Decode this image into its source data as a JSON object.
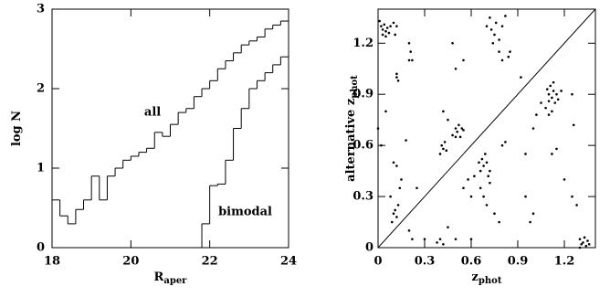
{
  "chart_data": [
    {
      "type": "histogram",
      "x_label": "R",
      "x_label_sub": "aper",
      "y_label": "log N",
      "bins": [
        18.0,
        18.2,
        18.4,
        18.6,
        18.8,
        19.0,
        19.2,
        19.4,
        19.6,
        19.8,
        20.0,
        20.2,
        20.4,
        20.6,
        20.8,
        21.0,
        21.2,
        21.4,
        21.6,
        21.8,
        22.0,
        22.2,
        22.4,
        22.6,
        22.8,
        23.0,
        23.2,
        23.4,
        23.6,
        23.8,
        24.0
      ],
      "series": [
        {
          "name": "all",
          "color": "#000000",
          "values": [
            0.6,
            0.4,
            0.3,
            0.48,
            0.6,
            0.9,
            0.6,
            0.9,
            1.0,
            1.1,
            1.15,
            1.2,
            1.25,
            1.45,
            1.4,
            1.55,
            1.7,
            1.75,
            1.9,
            2.0,
            2.1,
            2.25,
            2.35,
            2.45,
            2.55,
            2.6,
            2.65,
            2.75,
            2.8,
            2.85
          ]
        },
        {
          "name": "bimodal",
          "color": "#000000",
          "values": [
            null,
            null,
            null,
            null,
            null,
            null,
            null,
            null,
            null,
            null,
            null,
            null,
            null,
            null,
            null,
            null,
            null,
            null,
            null,
            0.3,
            0.78,
            0.8,
            1.1,
            1.5,
            1.75,
            2.0,
            2.1,
            2.2,
            2.3,
            2.4
          ]
        }
      ],
      "xlim": [
        18,
        24
      ],
      "xticks": [
        18,
        20,
        22,
        24
      ],
      "ylim": [
        0,
        3
      ],
      "yticks": [
        0,
        1,
        2,
        3
      ]
    },
    {
      "type": "scatter",
      "x_label": "z",
      "x_label_sub": "phot",
      "y_label": "alternative z",
      "y_label_sub": "phot",
      "color": "#000000",
      "x": [
        0.02,
        0.03,
        0.04,
        0.05,
        0.06,
        0.07,
        0.03,
        0.08,
        0.01,
        0.05,
        0.1,
        0.12,
        0.11,
        0.12,
        0.13,
        0.12,
        0.2,
        0.21,
        0.22,
        0.2,
        0.05,
        0.0,
        0.02,
        0.1,
        0.12,
        0.08,
        0.1,
        0.11,
        0.12,
        0.09,
        0.13,
        0.14,
        0.15,
        0.2,
        0.22,
        0.18,
        0.3,
        0.25,
        0.4,
        0.41,
        0.42,
        0.43,
        0.44,
        0.42,
        0.45,
        0.5,
        0.51,
        0.52,
        0.53,
        0.54,
        0.55,
        0.5,
        0.48,
        0.48,
        0.5,
        0.55,
        0.7,
        0.72,
        0.73,
        0.75,
        0.76,
        0.78,
        0.8,
        0.74,
        0.82,
        0.8,
        0.78,
        0.85,
        0.84,
        0.65,
        0.66,
        0.67,
        0.68,
        0.69,
        0.7,
        0.71,
        0.72,
        0.66,
        0.68,
        0.7,
        0.72,
        0.55,
        0.58,
        0.6,
        0.62,
        0.75,
        0.78,
        0.6,
        0.8,
        0.82,
        0.5,
        0.45,
        0.4,
        0.38,
        0.42,
        1.1,
        1.12,
        1.13,
        1.14,
        1.1,
        1.11,
        1.15,
        1.08,
        1.12,
        1.16,
        1.09,
        1.13,
        1.05,
        1.18,
        1.1,
        1.02,
        1.0,
        1.15,
        1.12,
        1.25,
        1.26,
        1.2,
        1.0,
        0.95,
        0.98,
        1.3,
        1.32,
        1.31,
        1.33,
        1.34,
        1.35,
        1.3,
        1.36,
        1.25,
        1.28,
        0.95,
        0.92
      ],
      "values": [
        1.3,
        1.28,
        1.31,
        1.27,
        1.29,
        1.26,
        1.25,
        1.3,
        1.33,
        1.24,
        1.32,
        1.3,
        1.25,
        1.02,
        0.98,
        1.0,
        1.2,
        1.15,
        1.1,
        1.1,
        0.8,
        0.7,
        0.6,
        0.5,
        0.48,
        0.3,
        0.2,
        0.22,
        0.18,
        0.15,
        0.25,
        0.35,
        0.4,
        0.1,
        0.05,
        0.63,
        0.05,
        0.35,
        0.55,
        0.6,
        0.58,
        0.62,
        0.57,
        0.8,
        0.75,
        0.7,
        0.68,
        0.72,
        0.65,
        0.7,
        0.69,
        0.65,
        0.66,
        1.2,
        1.05,
        1.1,
        1.3,
        1.35,
        1.28,
        1.25,
        1.32,
        1.22,
        1.3,
        1.2,
        1.36,
        1.1,
        1.15,
        1.15,
        1.12,
        0.5,
        0.45,
        0.52,
        0.48,
        0.55,
        0.5,
        0.42,
        0.38,
        0.35,
        0.3,
        0.25,
        0.45,
        0.35,
        0.4,
        0.3,
        0.42,
        0.2,
        0.15,
        0.05,
        0.6,
        0.62,
        0.05,
        0.12,
        0.05,
        0.03,
        0.02,
        0.9,
        0.88,
        0.92,
        0.85,
        0.86,
        0.95,
        0.9,
        0.82,
        0.8,
        0.87,
        0.93,
        0.97,
        0.85,
        0.92,
        0.78,
        0.78,
        0.7,
        0.58,
        0.55,
        0.9,
        0.72,
        0.4,
        0.2,
        0.3,
        0.15,
        0.05,
        0.03,
        0.02,
        0.06,
        0.01,
        0.04,
        0.0,
        0.02,
        0.3,
        0.25,
        0.55,
        1.0
      ],
      "xlim": [
        0,
        1.4
      ],
      "xticks": [
        0,
        0.3,
        0.6,
        0.9,
        1.2
      ],
      "ylim": [
        0,
        1.4
      ],
      "yticks": [
        0,
        0.3,
        0.6,
        0.9,
        1.2
      ],
      "reference_line": "y=x"
    }
  ]
}
